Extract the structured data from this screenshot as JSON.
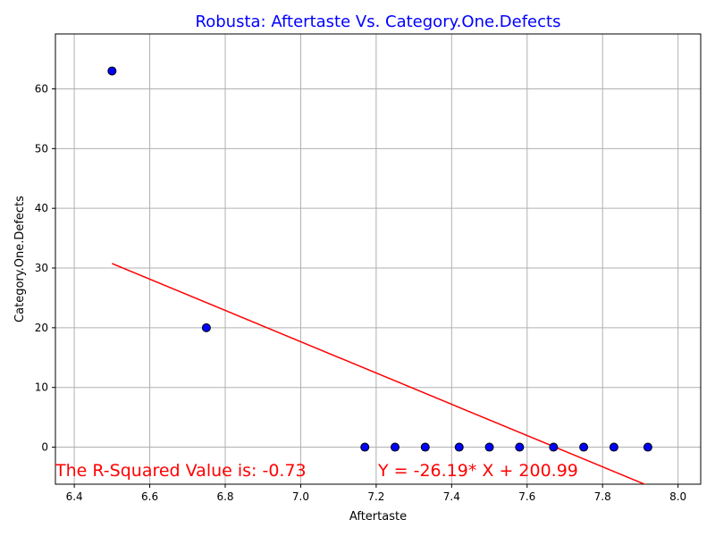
{
  "chart_data": {
    "type": "scatter",
    "title": "Robusta: Aftertaste Vs. Category.One.Defects",
    "xlabel": "Aftertaste",
    "ylabel": "Category.One.Defects",
    "xlim": [
      6.35,
      8.06
    ],
    "ylim": [
      -6.2,
      69.2
    ],
    "xticks": [
      6.4,
      6.6,
      6.8,
      7.0,
      7.2,
      7.4,
      7.6,
      7.8,
      8.0
    ],
    "xtick_labels": [
      "6.4",
      "6.6",
      "6.8",
      "7.0",
      "7.2",
      "7.4",
      "7.6",
      "7.8",
      "8.0"
    ],
    "yticks": [
      0,
      10,
      20,
      30,
      40,
      50,
      60
    ],
    "ytick_labels": [
      "0",
      "10",
      "20",
      "30",
      "40",
      "50",
      "60"
    ],
    "grid": true,
    "series": [
      {
        "points": [
          [
            6.5,
            63
          ],
          [
            6.75,
            20
          ],
          [
            7.17,
            0
          ],
          [
            7.25,
            0
          ],
          [
            7.33,
            0
          ],
          [
            7.42,
            0
          ],
          [
            7.5,
            0
          ],
          [
            7.58,
            0
          ],
          [
            7.67,
            0
          ],
          [
            7.75,
            0
          ],
          [
            7.83,
            0
          ],
          [
            7.92,
            0
          ]
        ]
      }
    ],
    "regression": {
      "slope": -26.19,
      "intercept": 200.99,
      "x_range": [
        6.5,
        7.92
      ]
    },
    "annotations": {
      "r_squared": "The R-Squared Value is: -0.73",
      "equation": "Y = -26.19* X + 200.99"
    },
    "colors": {
      "title": "#0000ff",
      "marker_fill": "#0000ff",
      "marker_edge": "#000000",
      "regression_line": "#ff0000",
      "annotation": "#ff0000",
      "grid": "#b0b0b0"
    }
  }
}
